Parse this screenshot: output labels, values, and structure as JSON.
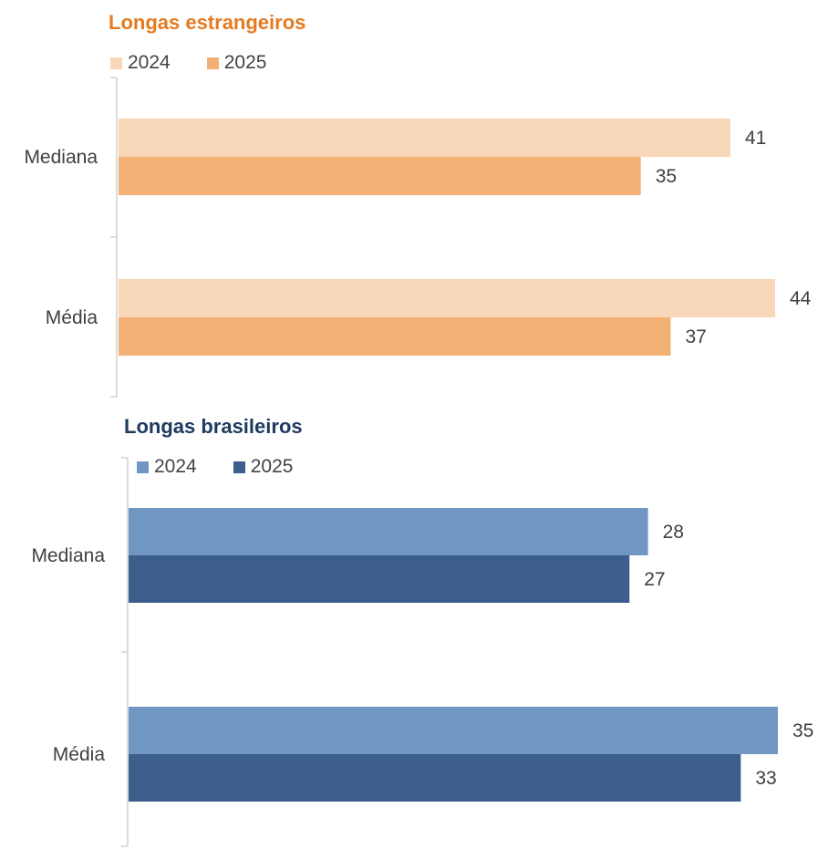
{
  "chart_data": [
    {
      "type": "bar",
      "orientation": "horizontal",
      "title": "Longas estrangeiros",
      "title_color": "#e57a20",
      "categories": [
        "Mediana",
        "Média"
      ],
      "series": [
        {
          "name": "2024",
          "color": "#f8d6b8",
          "values": [
            41,
            44
          ]
        },
        {
          "name": "2025",
          "color": "#f2b074",
          "values": [
            35,
            37
          ]
        }
      ],
      "xlim": [
        0,
        44
      ],
      "legend_position": "top-left",
      "grid": false
    },
    {
      "type": "bar",
      "orientation": "horizontal",
      "title": "Longas brasileiros",
      "title_color": "#1f3a60",
      "categories": [
        "Mediana",
        "Média"
      ],
      "series": [
        {
          "name": "2024",
          "color": "#7096c4",
          "values": [
            28,
            35
          ]
        },
        {
          "name": "2025",
          "color": "#3b5e8c",
          "values": [
            27,
            33
          ]
        }
      ],
      "xlim": [
        0,
        35
      ],
      "legend_position": "top-left",
      "grid": false
    }
  ]
}
